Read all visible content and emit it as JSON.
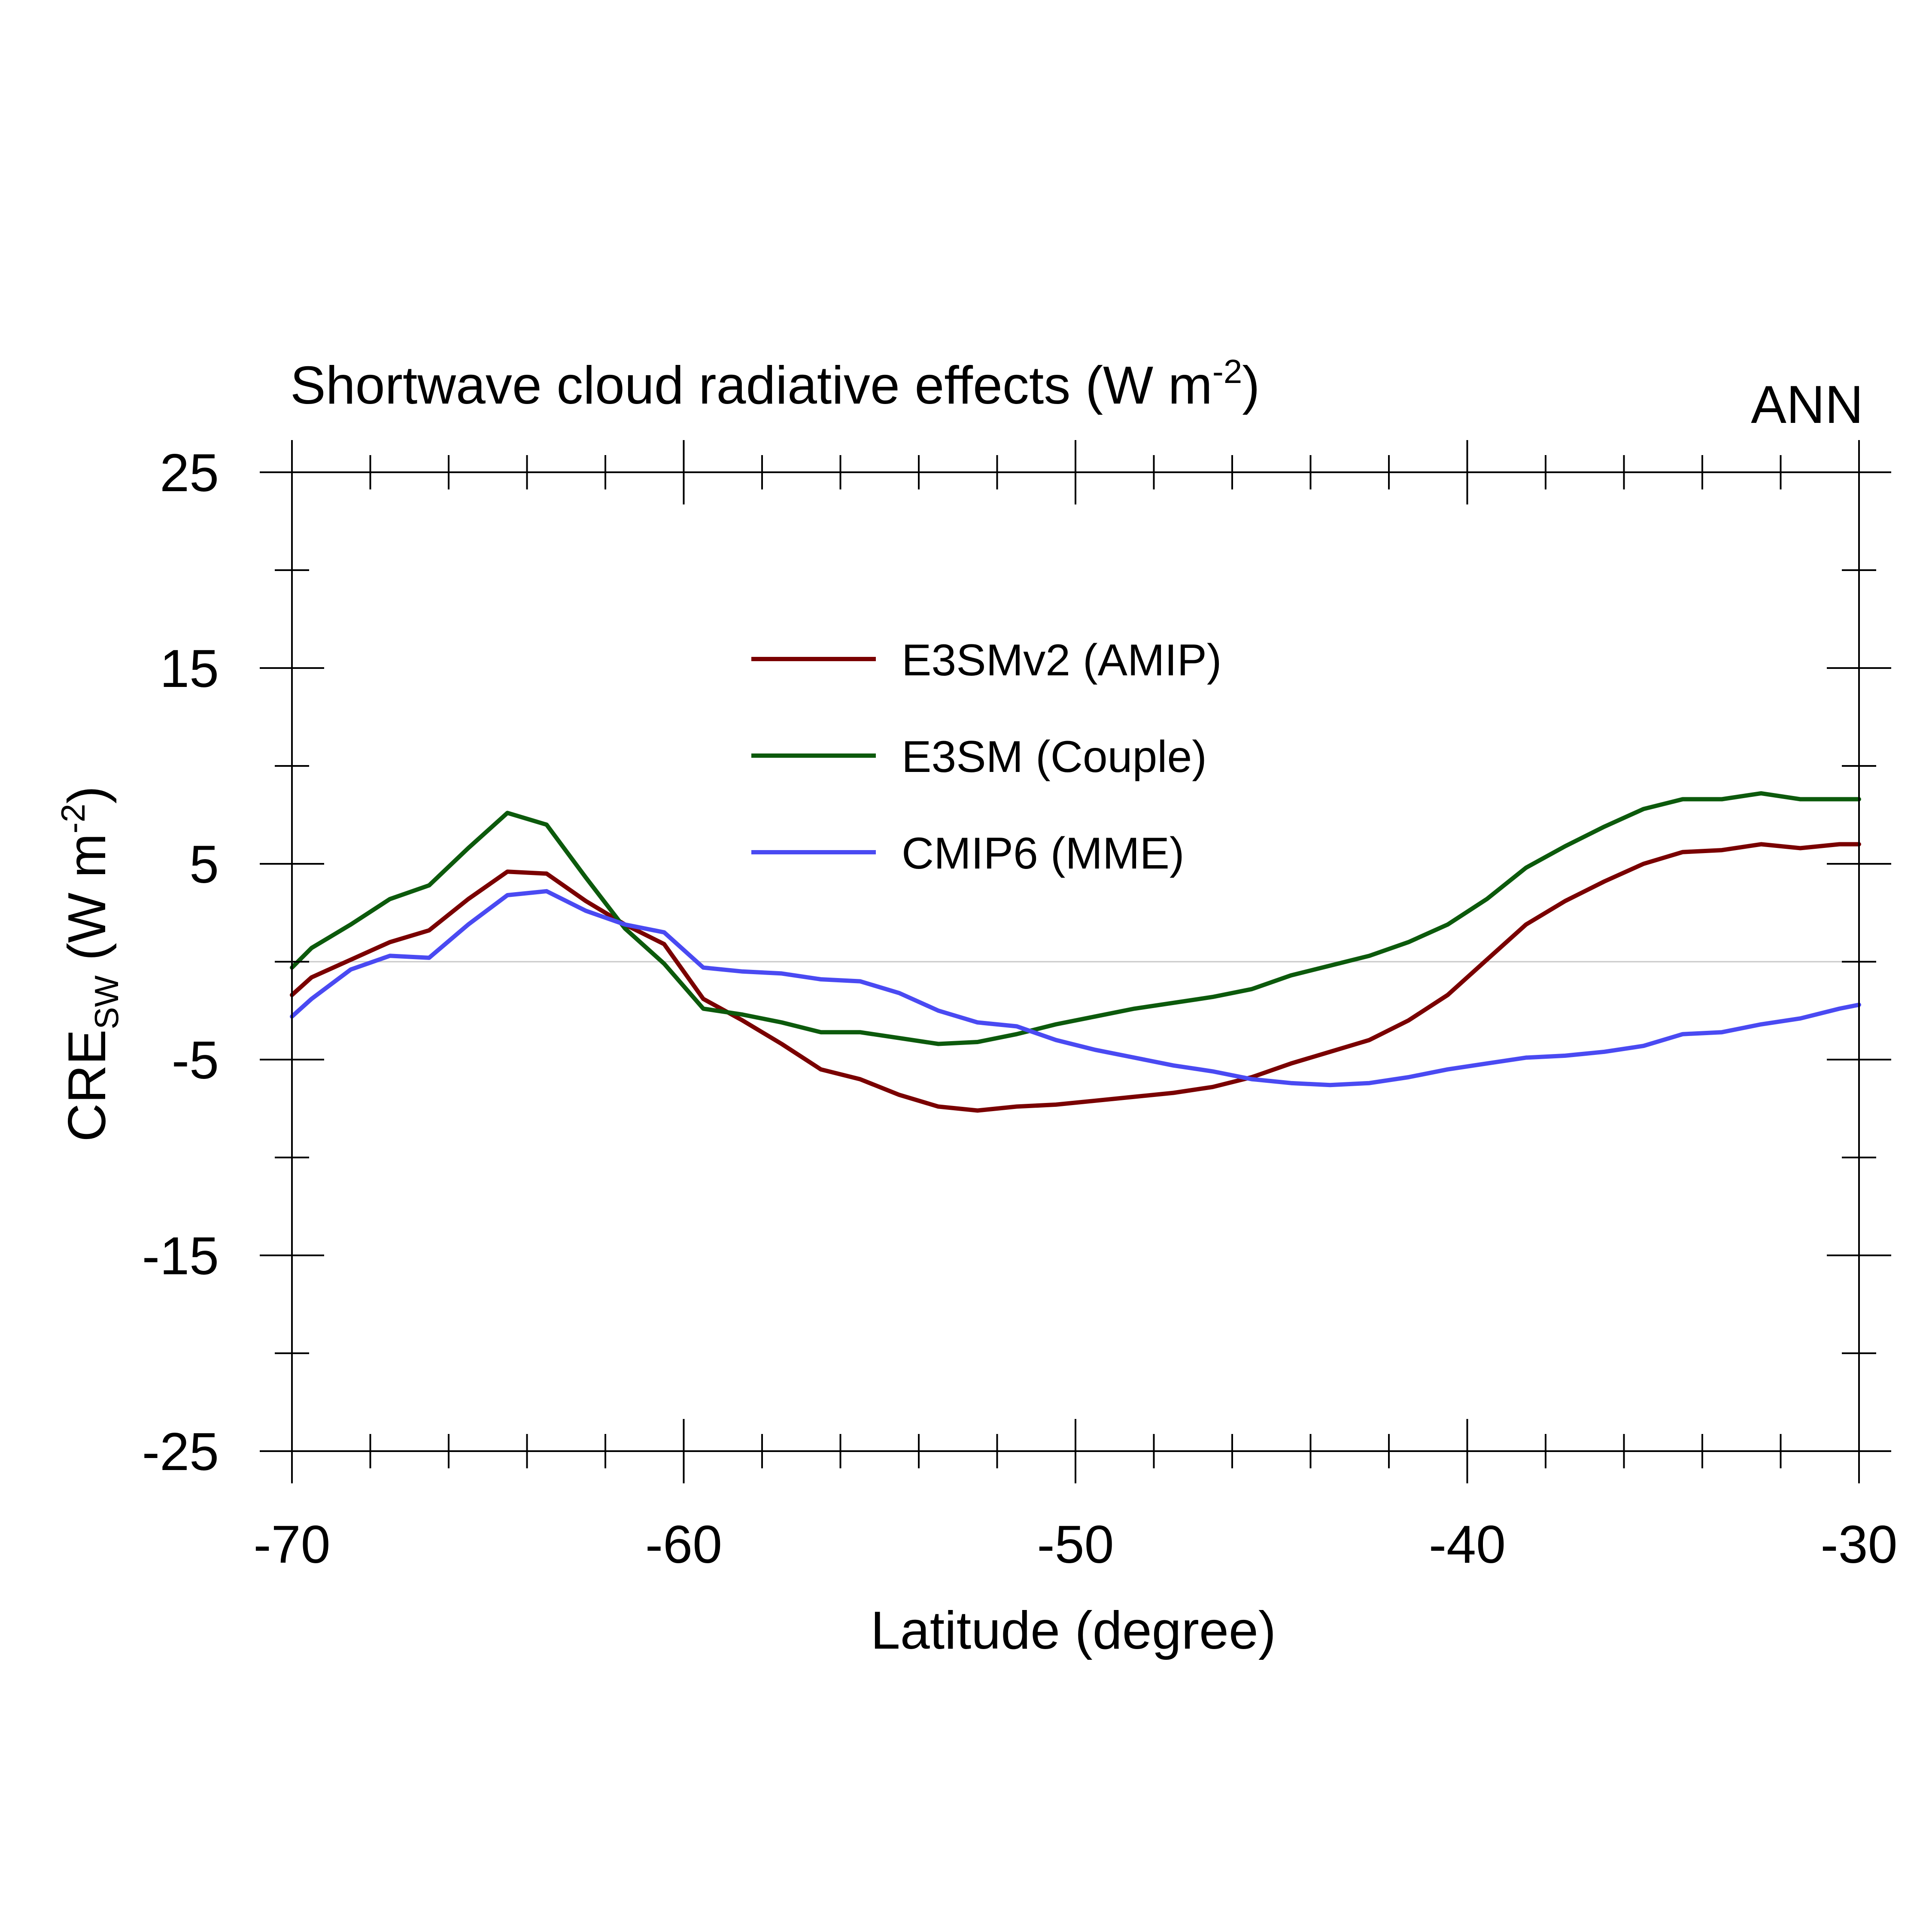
{
  "chart_data": {
    "type": "line",
    "title": "Shortwave cloud radiative effects (W m",
    "title_sup": "-2",
    "title_close": ")",
    "season": "ANN",
    "xlabel": "Latitude (degree)",
    "ylabel_main": "CRE",
    "ylabel_sub": "SW",
    "ylabel_units_open": " (W m",
    "ylabel_units_sup": "-2",
    "ylabel_units_close": ")",
    "xlim": [
      -70,
      -30
    ],
    "ylim": [
      -25,
      25
    ],
    "xticks": [
      "-70",
      "-60",
      "-50",
      "-40",
      "-30"
    ],
    "yticks": [
      "25",
      "15",
      "5",
      "-5",
      "-15",
      "-25"
    ],
    "zero_line": true,
    "legend_position": "upper-center",
    "x": [
      -70,
      -69.5,
      -68.5,
      -67.5,
      -66.5,
      -65.5,
      -64.5,
      -63.5,
      -62.5,
      -61.5,
      -60.5,
      -59.5,
      -58.5,
      -57.5,
      -56.5,
      -55.5,
      -54.5,
      -53.5,
      -52.5,
      -51.5,
      -50.5,
      -49.5,
      -48.5,
      -47.5,
      -46.5,
      -45.5,
      -44.5,
      -43.5,
      -42.5,
      -41.5,
      -40.5,
      -39.5,
      -38.5,
      -37.5,
      -36.5,
      -35.5,
      -34.5,
      -33.5,
      -32.5,
      -31.5,
      -30.5,
      -30
    ],
    "series": [
      {
        "name": "E3SMv2 (AMIP)",
        "color": "#7a0000",
        "values": [
          -1.7,
          -0.8,
          0.1,
          1.0,
          1.6,
          3.2,
          4.6,
          4.5,
          3.1,
          1.9,
          0.9,
          -1.9,
          -3.0,
          -4.2,
          -5.5,
          -6.0,
          -6.8,
          -7.4,
          -7.6,
          -7.4,
          -7.3,
          -7.1,
          -6.9,
          -6.7,
          -6.4,
          -5.9,
          -5.2,
          -4.6,
          -4.0,
          -3.0,
          -1.7,
          0.1,
          1.9,
          3.1,
          4.1,
          5.0,
          5.6,
          5.7,
          6.0,
          5.8,
          6.0,
          6.0
        ]
      },
      {
        "name": "E3SM (Couple)",
        "color": "#0c5a0c",
        "values": [
          -0.3,
          0.7,
          1.9,
          3.2,
          3.9,
          5.8,
          7.6,
          7.0,
          4.3,
          1.7,
          -0.1,
          -2.4,
          -2.7,
          -3.1,
          -3.6,
          -3.6,
          -3.9,
          -4.2,
          -4.1,
          -3.7,
          -3.2,
          -2.8,
          -2.4,
          -2.1,
          -1.8,
          -1.4,
          -0.7,
          -0.2,
          0.3,
          1.0,
          1.9,
          3.2,
          4.8,
          5.9,
          6.9,
          7.8,
          8.3,
          8.3,
          8.6,
          8.3,
          8.3,
          8.3
        ]
      },
      {
        "name": "CMIP6 (MME)",
        "color": "#4a4af2",
        "values": [
          -2.8,
          -1.9,
          -0.4,
          0.3,
          0.2,
          1.9,
          3.4,
          3.6,
          2.6,
          1.9,
          1.5,
          -0.3,
          -0.5,
          -0.6,
          -0.9,
          -1.0,
          -1.6,
          -2.5,
          -3.1,
          -3.3,
          -4.0,
          -4.5,
          -4.9,
          -5.3,
          -5.6,
          -6.0,
          -6.2,
          -6.3,
          -6.2,
          -5.9,
          -5.5,
          -5.2,
          -4.9,
          -4.8,
          -4.6,
          -4.3,
          -3.7,
          -3.6,
          -3.2,
          -2.9,
          -2.4,
          -2.2
        ]
      }
    ]
  }
}
